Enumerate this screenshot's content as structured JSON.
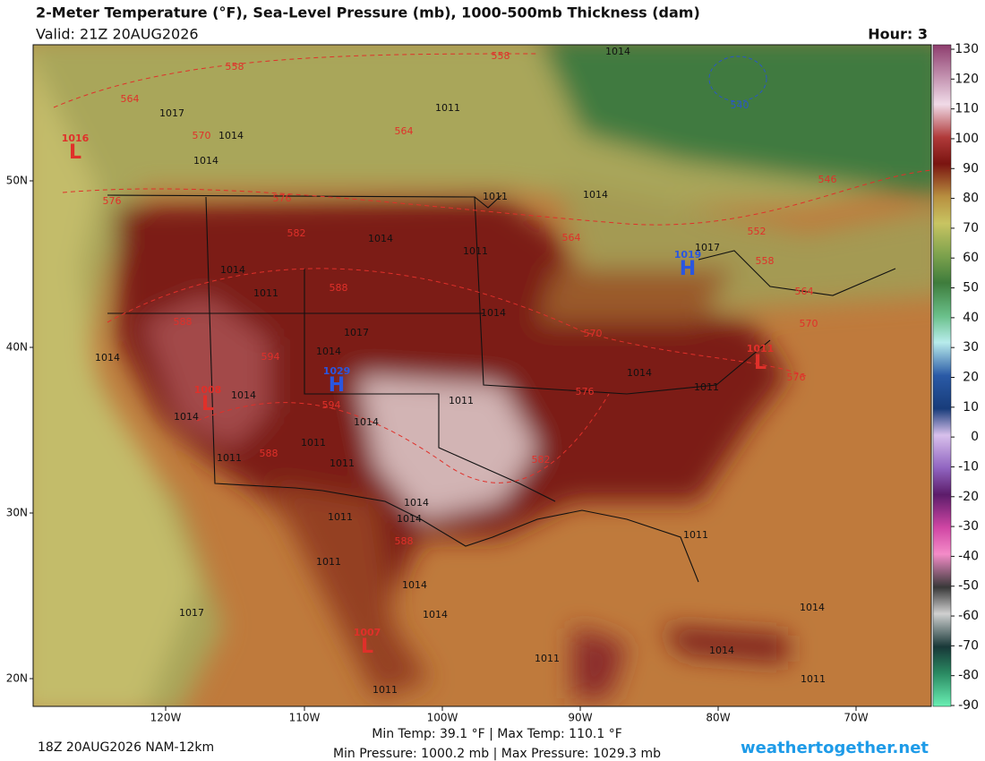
{
  "header": {
    "title": "2-Meter Temperature (°F), Sea-Level Pressure (mb), 1000-500mb Thickness (dam)",
    "valid": "Valid: 21Z 20AUG2026",
    "hour": "Hour: 3"
  },
  "map": {
    "lat_labels": [
      "50N",
      "40N",
      "30N",
      "20N"
    ],
    "lon_labels": [
      "120W",
      "110W",
      "100W",
      "90W",
      "80W",
      "70W"
    ],
    "isobars": [
      "1014",
      "1017",
      "1014",
      "1014",
      "1011",
      "1011",
      "1014",
      "1014",
      "1011",
      "1014",
      "1011",
      "1014",
      "1017",
      "1017",
      "1014",
      "1014",
      "1014",
      "1011",
      "1011",
      "1014",
      "1014",
      "1014",
      "1011",
      "1011",
      "1011",
      "1014",
      "1011",
      "1014",
      "1011",
      "1011",
      "1014",
      "1014",
      "1017",
      "1014",
      "1011",
      "1014",
      "1011",
      "1011"
    ],
    "thickness": [
      "558",
      "558",
      "564",
      "570",
      "564",
      "576",
      "576",
      "582",
      "588",
      "588",
      "594",
      "594",
      "588",
      "582",
      "576",
      "570",
      "564",
      "552",
      "558",
      "564",
      "570",
      "576",
      "546",
      "588",
      "540"
    ],
    "centers": [
      {
        "value": "1016",
        "symbol": "L"
      },
      {
        "value": "1008",
        "symbol": "L"
      },
      {
        "value": "1007",
        "symbol": "L"
      },
      {
        "value": "1011",
        "symbol": "L"
      },
      {
        "value": "1029",
        "symbol": "H"
      },
      {
        "value": "1019",
        "symbol": "H"
      }
    ]
  },
  "colorbar": {
    "ticks": [
      130,
      120,
      110,
      100,
      90,
      80,
      70,
      60,
      50,
      40,
      30,
      20,
      10,
      0,
      -10,
      -20,
      -30,
      -40,
      -50,
      -60,
      -70,
      -80,
      -90
    ]
  },
  "footer": {
    "run": "18Z 20AUG2026 NAM-12km",
    "temp_range": "Min Temp:  39.1 °F | Max Temp: 110.1 °F",
    "pressure_range": "Min Pressure: 1000.2 mb | Max Pressure: 1029.3 mb",
    "site": "weathertogether.net"
  }
}
